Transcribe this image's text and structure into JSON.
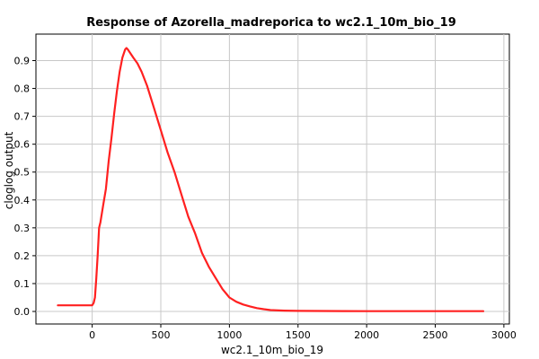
{
  "chart_data": {
    "type": "line",
    "title": "Response of Azorella_madreporica to wc2.1_10m_bio_19",
    "xlabel": "wc2.1_10m_bio_19",
    "ylabel": "cloglog output",
    "xlim": [
      -410,
      3040
    ],
    "ylim": [
      -0.045,
      0.995
    ],
    "xticks": [
      0,
      500,
      1000,
      1500,
      2000,
      2500,
      3000
    ],
    "yticks": [
      0.0,
      0.1,
      0.2,
      0.3,
      0.4,
      0.5,
      0.6,
      0.7,
      0.8,
      0.9
    ],
    "grid": true,
    "line_color": "#ff2020",
    "series": [
      {
        "x": [
          -250,
          -200,
          -100,
          0,
          10,
          20,
          30,
          40,
          50,
          60,
          80,
          100,
          120,
          140,
          160,
          180,
          200,
          220,
          240,
          250,
          260,
          280,
          300,
          330,
          360,
          400,
          450,
          500,
          550,
          600,
          650,
          700,
          750,
          800,
          850,
          900,
          950,
          1000,
          1050,
          1100,
          1150,
          1200,
          1250,
          1300,
          1400,
          1500,
          2000,
          2500,
          2850
        ],
        "y": [
          0.022,
          0.022,
          0.022,
          0.022,
          0.03,
          0.05,
          0.12,
          0.2,
          0.3,
          0.32,
          0.38,
          0.44,
          0.54,
          0.62,
          0.71,
          0.79,
          0.86,
          0.91,
          0.94,
          0.945,
          0.94,
          0.925,
          0.91,
          0.89,
          0.86,
          0.81,
          0.73,
          0.65,
          0.57,
          0.5,
          0.42,
          0.34,
          0.28,
          0.21,
          0.16,
          0.12,
          0.08,
          0.05,
          0.035,
          0.025,
          0.018,
          0.012,
          0.008,
          0.005,
          0.003,
          0.002,
          0.001,
          0.001,
          0.001
        ]
      }
    ]
  }
}
